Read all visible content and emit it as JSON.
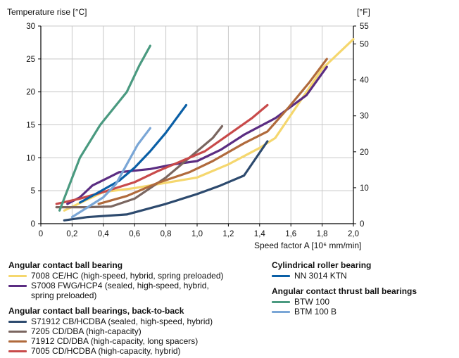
{
  "chart_data": {
    "type": "line",
    "y_title": "Temperature rise [°C]",
    "y2_title": "[°F]",
    "xlabel": "Speed factor A [10⁶ mm/min]",
    "xlim": [
      0,
      2.0
    ],
    "ylim": [
      0,
      30
    ],
    "y2lim": [
      0,
      55
    ],
    "x_ticks": [
      "0",
      "0,2",
      "0,4",
      "0,6",
      "0,8",
      "1,0",
      "1,2",
      "1,4",
      "1,6",
      "1,8",
      "2,0"
    ],
    "y_ticks": [
      "0",
      "5",
      "10",
      "15",
      "20",
      "25",
      "30"
    ],
    "y2_ticks": [
      "0",
      "10",
      "20",
      "30",
      "40",
      "50",
      "55"
    ],
    "grid": true,
    "series": [
      {
        "id": "s7008ce",
        "name": "7008 CE/HC (high-speed, hybrid, spring preloaded)",
        "color": "#f5d76e",
        "points": [
          [
            0.15,
            2.0
          ],
          [
            0.4,
            4.8
          ],
          [
            0.6,
            5.4
          ],
          [
            1.0,
            7.0
          ],
          [
            1.2,
            9.0
          ],
          [
            1.4,
            11.5
          ],
          [
            1.5,
            13.0
          ],
          [
            1.6,
            16.5
          ],
          [
            1.8,
            23.5
          ],
          [
            2.0,
            28.0
          ]
        ]
      },
      {
        "id": "s7008fwg",
        "name": "S7008 FWG/HCP4 (sealed, high-speed, hybrid,\nspring preloaded)",
        "color": "#5b2d82",
        "points": [
          [
            0.17,
            3.0
          ],
          [
            0.25,
            4.0
          ],
          [
            0.33,
            5.8
          ],
          [
            0.45,
            7.2
          ],
          [
            0.5,
            7.8
          ],
          [
            0.7,
            8.3
          ],
          [
            0.85,
            9.0
          ],
          [
            1.0,
            9.5
          ],
          [
            1.15,
            11.2
          ],
          [
            1.3,
            13.5
          ],
          [
            1.5,
            16.0
          ],
          [
            1.7,
            19.5
          ],
          [
            1.83,
            23.8
          ]
        ]
      },
      {
        "id": "s71912",
        "name": "S71912 CB/HCDBA (sealed, high-speed, hybrid)",
        "color": "#2d4a6e",
        "points": [
          [
            0.15,
            0.5
          ],
          [
            0.3,
            1.0
          ],
          [
            0.55,
            1.4
          ],
          [
            0.8,
            3.0
          ],
          [
            1.0,
            4.5
          ],
          [
            1.15,
            5.8
          ],
          [
            1.3,
            7.3
          ],
          [
            1.45,
            12.5
          ]
        ]
      },
      {
        "id": "s7205",
        "name": "7205 CD/DBA (high-capacity)",
        "color": "#7a6660",
        "points": [
          [
            0.1,
            2.5
          ],
          [
            0.3,
            2.5
          ],
          [
            0.45,
            2.6
          ],
          [
            0.6,
            3.8
          ],
          [
            0.8,
            7.0
          ],
          [
            1.0,
            11.0
          ],
          [
            1.1,
            13.0
          ],
          [
            1.16,
            14.8
          ]
        ]
      },
      {
        "id": "s71912cd",
        "name": "71912 CD/DBA (high-capacity, long spacers)",
        "color": "#b06a3c",
        "points": [
          [
            0.37,
            3.0
          ],
          [
            0.55,
            4.2
          ],
          [
            0.75,
            6.2
          ],
          [
            0.95,
            7.8
          ],
          [
            1.1,
            9.5
          ],
          [
            1.3,
            12.2
          ],
          [
            1.45,
            14.0
          ],
          [
            1.58,
            17.5
          ],
          [
            1.72,
            21.5
          ],
          [
            1.83,
            25.0
          ]
        ]
      },
      {
        "id": "s7005",
        "name": "7005 CD/HCDBA (high-capacity, hybrid)",
        "color": "#c84a4a",
        "points": [
          [
            0.1,
            3.0
          ],
          [
            0.25,
            3.8
          ],
          [
            0.4,
            4.8
          ],
          [
            0.6,
            6.3
          ],
          [
            0.75,
            8.0
          ],
          [
            0.9,
            9.5
          ],
          [
            1.05,
            11.0
          ],
          [
            1.2,
            13.5
          ],
          [
            1.35,
            16.0
          ],
          [
            1.45,
            18.0
          ]
        ]
      },
      {
        "id": "snn3014",
        "name": "NN 3014 KTN",
        "color": "#0a5fa6",
        "points": [
          [
            0.25,
            3.2
          ],
          [
            0.35,
            4.5
          ],
          [
            0.5,
            6.5
          ],
          [
            0.6,
            8.5
          ],
          [
            0.7,
            11.0
          ],
          [
            0.8,
            13.8
          ],
          [
            0.93,
            18.0
          ]
        ]
      },
      {
        "id": "sbtw100",
        "name": "BTW 100",
        "color": "#4a9a80",
        "points": [
          [
            0.12,
            2.0
          ],
          [
            0.25,
            10.0
          ],
          [
            0.38,
            15.0
          ],
          [
            0.55,
            20.0
          ],
          [
            0.63,
            24.0
          ],
          [
            0.7,
            27.0
          ]
        ]
      },
      {
        "id": "sbtm100b",
        "name": "BTM 100 B",
        "color": "#7aa6d6",
        "points": [
          [
            0.2,
            1.0
          ],
          [
            0.3,
            2.5
          ],
          [
            0.4,
            4.0
          ],
          [
            0.48,
            6.0
          ],
          [
            0.55,
            9.0
          ],
          [
            0.62,
            12.0
          ],
          [
            0.7,
            14.5
          ]
        ]
      }
    ]
  },
  "legend": {
    "group1_title": "Angular contact ball bearing",
    "group2_title": "Angular contact ball bearings, back-to-back",
    "group3_title": "Cylindrical roller bearing",
    "group4_title": "Angular contact thrust ball bearings"
  }
}
